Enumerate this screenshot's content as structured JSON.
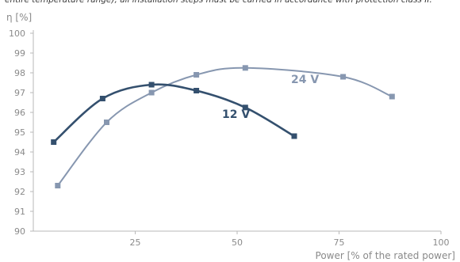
{
  "header": {
    "text": "entire temperature range), all installation steps must be carried in accordance with protection class II."
  },
  "chart_data": {
    "type": "line",
    "title": "",
    "xlabel": "Power [% of the rated power]",
    "ylabel": "η [%]",
    "xlim": [
      0,
      100
    ],
    "ylim": [
      90,
      100
    ],
    "x_ticks": [
      25,
      50,
      75,
      100
    ],
    "y_ticks": [
      90,
      91,
      92,
      93,
      94,
      95,
      96,
      97,
      98,
      99,
      100
    ],
    "grid": false,
    "series": [
      {
        "name": "24 V",
        "color": "#8797b0",
        "points": [
          [
            6,
            92.3
          ],
          [
            18,
            95.5
          ],
          [
            29,
            97.0
          ],
          [
            40,
            97.9
          ],
          [
            52,
            98.25
          ],
          [
            76,
            97.8
          ],
          [
            88,
            96.8
          ]
        ]
      },
      {
        "name": "12 V",
        "color": "#34506e",
        "points": [
          [
            5,
            94.5
          ],
          [
            17,
            96.7
          ],
          [
            29,
            97.4
          ],
          [
            40,
            97.1
          ],
          [
            52,
            96.25
          ],
          [
            64,
            94.8
          ]
        ]
      }
    ]
  }
}
